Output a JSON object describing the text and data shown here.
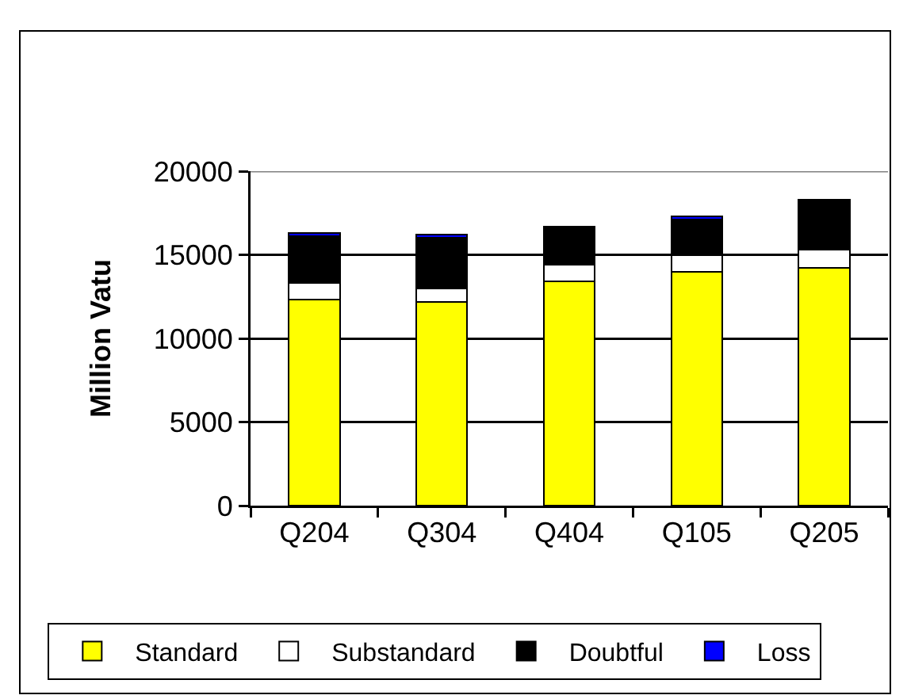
{
  "chart_data": {
    "type": "bar",
    "stacked": true,
    "ylabel": "Million Vatu",
    "categories": [
      "Q204",
      "Q304",
      "Q404",
      "Q105",
      "Q205"
    ],
    "series": [
      {
        "name": "Standard",
        "color": "#ffff00",
        "values": [
          12300,
          12200,
          13400,
          14000,
          14200
        ]
      },
      {
        "name": "Substandard",
        "color": "#ffffff",
        "values": [
          1000,
          800,
          1000,
          1000,
          1100
        ]
      },
      {
        "name": "Doubtful",
        "color": "#000000",
        "values": [
          2800,
          3000,
          2300,
          2100,
          3000
        ]
      },
      {
        "name": "Loss",
        "color": "#0000ff",
        "values": [
          200,
          200,
          null,
          200,
          null
        ]
      }
    ],
    "ylim": [
      0,
      20000
    ],
    "yticks": [
      0,
      5000,
      10000,
      15000,
      20000
    ],
    "grid": "y",
    "legend": "bottom"
  }
}
